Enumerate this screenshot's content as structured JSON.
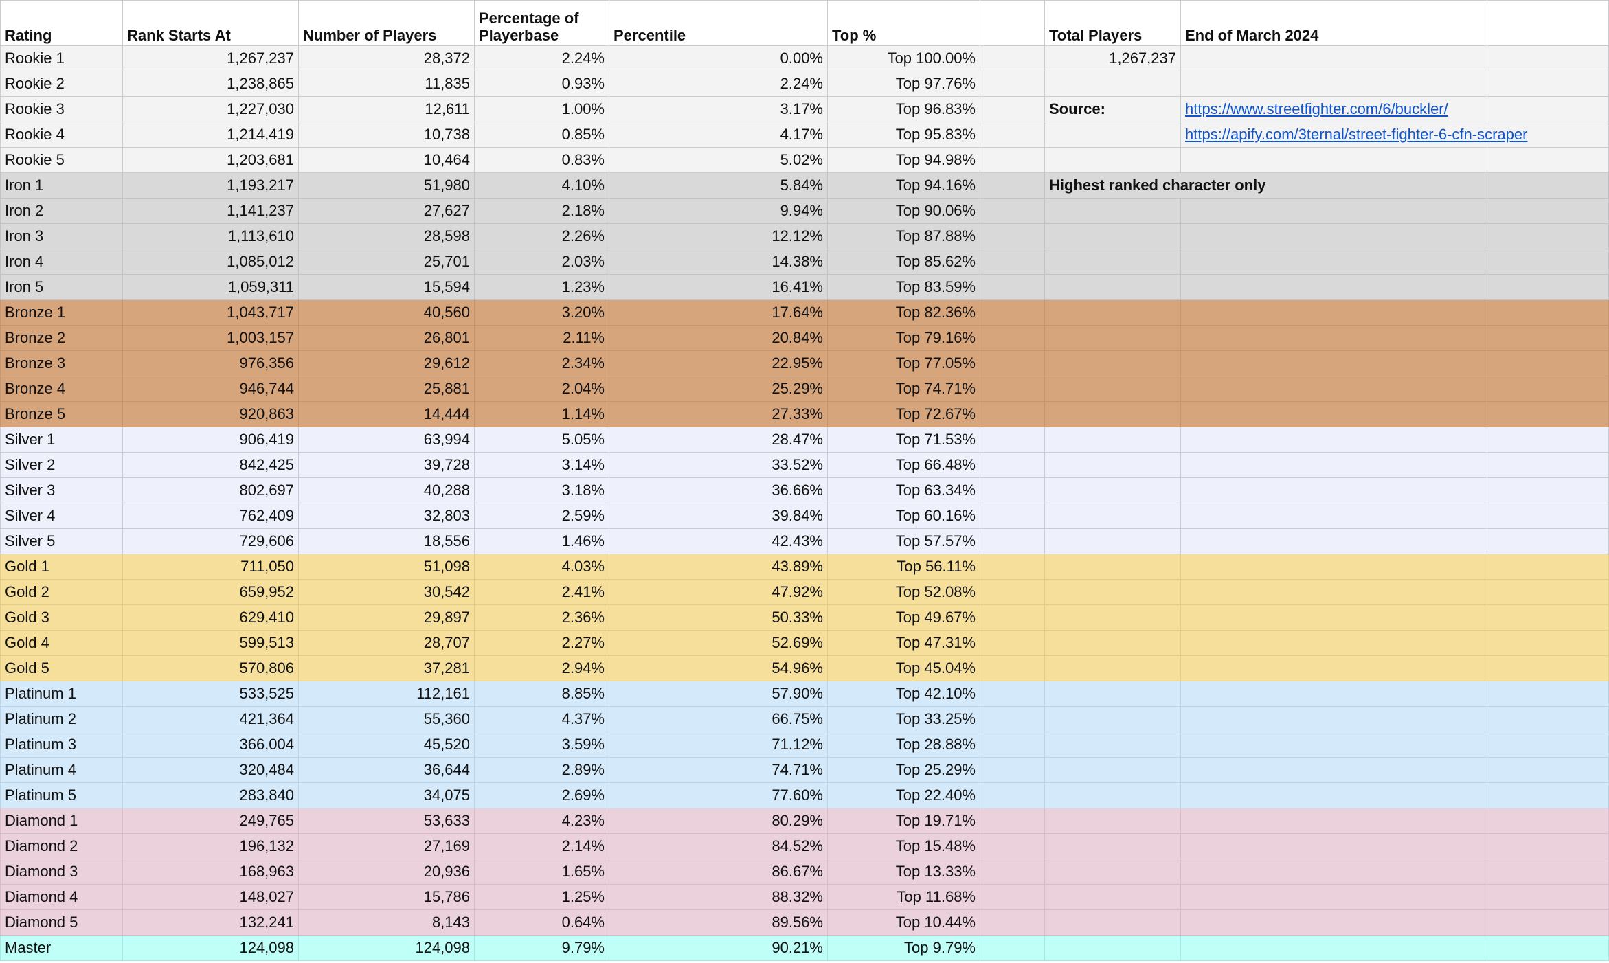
{
  "headers": {
    "rating": "Rating",
    "rank_starts_at": "Rank Starts At",
    "number_of_players": "Number of Players",
    "percentage_of_playerbase": "Percentage of Playerbase",
    "percentile": "Percentile",
    "top_pct": "Top %",
    "total_players": "Total Players",
    "end_date": "End of March 2024"
  },
  "side_panel": {
    "total_players_value": "1,267,237",
    "source_label": "Source:",
    "source_link_1": "https://www.streetfighter.com/6/buckler/",
    "source_link_2": "https://apify.com/3ternal/street-fighter-6-cfn-scraper",
    "note": "Highest ranked character only"
  },
  "tier_colors": {
    "rookie": "#f3f3f3",
    "iron": "#d9d9d9",
    "bronze": "#d6a57c",
    "silver": "#eef1fb",
    "gold": "#f6df9b",
    "platinum": "#d4e9f9",
    "diamond": "#ead1dc",
    "master": "#bffff8"
  },
  "rows": [
    {
      "rating": "Rookie 1",
      "starts": "1,267,237",
      "players": "28,372",
      "pct": "2.24%",
      "percentile": "0.00%",
      "top": "Top 100.00%"
    },
    {
      "rating": "Rookie 2",
      "starts": "1,238,865",
      "players": "11,835",
      "pct": "0.93%",
      "percentile": "2.24%",
      "top": "Top 97.76%"
    },
    {
      "rating": "Rookie 3",
      "starts": "1,227,030",
      "players": "12,611",
      "pct": "1.00%",
      "percentile": "3.17%",
      "top": "Top 96.83%"
    },
    {
      "rating": "Rookie 4",
      "starts": "1,214,419",
      "players": "10,738",
      "pct": "0.85%",
      "percentile": "4.17%",
      "top": "Top 95.83%"
    },
    {
      "rating": "Rookie 5",
      "starts": "1,203,681",
      "players": "10,464",
      "pct": "0.83%",
      "percentile": "5.02%",
      "top": "Top 94.98%"
    },
    {
      "rating": "Iron 1",
      "starts": "1,193,217",
      "players": "51,980",
      "pct": "4.10%",
      "percentile": "5.84%",
      "top": "Top 94.16%"
    },
    {
      "rating": "Iron 2",
      "starts": "1,141,237",
      "players": "27,627",
      "pct": "2.18%",
      "percentile": "9.94%",
      "top": "Top 90.06%"
    },
    {
      "rating": "Iron 3",
      "starts": "1,113,610",
      "players": "28,598",
      "pct": "2.26%",
      "percentile": "12.12%",
      "top": "Top 87.88%"
    },
    {
      "rating": "Iron 4",
      "starts": "1,085,012",
      "players": "25,701",
      "pct": "2.03%",
      "percentile": "14.38%",
      "top": "Top 85.62%"
    },
    {
      "rating": "Iron 5",
      "starts": "1,059,311",
      "players": "15,594",
      "pct": "1.23%",
      "percentile": "16.41%",
      "top": "Top 83.59%"
    },
    {
      "rating": "Bronze 1",
      "starts": "1,043,717",
      "players": "40,560",
      "pct": "3.20%",
      "percentile": "17.64%",
      "top": "Top 82.36%"
    },
    {
      "rating": "Bronze 2",
      "starts": "1,003,157",
      "players": "26,801",
      "pct": "2.11%",
      "percentile": "20.84%",
      "top": "Top 79.16%"
    },
    {
      "rating": "Bronze 3",
      "starts": "976,356",
      "players": "29,612",
      "pct": "2.34%",
      "percentile": "22.95%",
      "top": "Top 77.05%"
    },
    {
      "rating": "Bronze 4",
      "starts": "946,744",
      "players": "25,881",
      "pct": "2.04%",
      "percentile": "25.29%",
      "top": "Top 74.71%"
    },
    {
      "rating": "Bronze 5",
      "starts": "920,863",
      "players": "14,444",
      "pct": "1.14%",
      "percentile": "27.33%",
      "top": "Top 72.67%"
    },
    {
      "rating": "Silver 1",
      "starts": "906,419",
      "players": "63,994",
      "pct": "5.05%",
      "percentile": "28.47%",
      "top": "Top 71.53%"
    },
    {
      "rating": "Silver 2",
      "starts": "842,425",
      "players": "39,728",
      "pct": "3.14%",
      "percentile": "33.52%",
      "top": "Top 66.48%"
    },
    {
      "rating": "Silver 3",
      "starts": "802,697",
      "players": "40,288",
      "pct": "3.18%",
      "percentile": "36.66%",
      "top": "Top 63.34%"
    },
    {
      "rating": "Silver 4",
      "starts": "762,409",
      "players": "32,803",
      "pct": "2.59%",
      "percentile": "39.84%",
      "top": "Top 60.16%"
    },
    {
      "rating": "Silver 5",
      "starts": "729,606",
      "players": "18,556",
      "pct": "1.46%",
      "percentile": "42.43%",
      "top": "Top 57.57%"
    },
    {
      "rating": "Gold 1",
      "starts": "711,050",
      "players": "51,098",
      "pct": "4.03%",
      "percentile": "43.89%",
      "top": "Top 56.11%"
    },
    {
      "rating": "Gold 2",
      "starts": "659,952",
      "players": "30,542",
      "pct": "2.41%",
      "percentile": "47.92%",
      "top": "Top 52.08%"
    },
    {
      "rating": "Gold 3",
      "starts": "629,410",
      "players": "29,897",
      "pct": "2.36%",
      "percentile": "50.33%",
      "top": "Top 49.67%"
    },
    {
      "rating": "Gold 4",
      "starts": "599,513",
      "players": "28,707",
      "pct": "2.27%",
      "percentile": "52.69%",
      "top": "Top 47.31%"
    },
    {
      "rating": "Gold 5",
      "starts": "570,806",
      "players": "37,281",
      "pct": "2.94%",
      "percentile": "54.96%",
      "top": "Top 45.04%"
    },
    {
      "rating": "Platinum 1",
      "starts": "533,525",
      "players": "112,161",
      "pct": "8.85%",
      "percentile": "57.90%",
      "top": "Top 42.10%"
    },
    {
      "rating": "Platinum 2",
      "starts": "421,364",
      "players": "55,360",
      "pct": "4.37%",
      "percentile": "66.75%",
      "top": "Top 33.25%"
    },
    {
      "rating": "Platinum 3",
      "starts": "366,004",
      "players": "45,520",
      "pct": "3.59%",
      "percentile": "71.12%",
      "top": "Top 28.88%"
    },
    {
      "rating": "Platinum 4",
      "starts": "320,484",
      "players": "36,644",
      "pct": "2.89%",
      "percentile": "74.71%",
      "top": "Top 25.29%"
    },
    {
      "rating": "Platinum 5",
      "starts": "283,840",
      "players": "34,075",
      "pct": "2.69%",
      "percentile": "77.60%",
      "top": "Top 22.40%"
    },
    {
      "rating": "Diamond 1",
      "starts": "249,765",
      "players": "53,633",
      "pct": "4.23%",
      "percentile": "80.29%",
      "top": "Top 19.71%"
    },
    {
      "rating": "Diamond 2",
      "starts": "196,132",
      "players": "27,169",
      "pct": "2.14%",
      "percentile": "84.52%",
      "top": "Top 15.48%"
    },
    {
      "rating": "Diamond 3",
      "starts": "168,963",
      "players": "20,936",
      "pct": "1.65%",
      "percentile": "86.67%",
      "top": "Top 13.33%"
    },
    {
      "rating": "Diamond 4",
      "starts": "148,027",
      "players": "15,786",
      "pct": "1.25%",
      "percentile": "88.32%",
      "top": "Top 11.68%"
    },
    {
      "rating": "Diamond 5",
      "starts": "132,241",
      "players": "8,143",
      "pct": "0.64%",
      "percentile": "89.56%",
      "top": "Top 10.44%"
    },
    {
      "rating": "Master",
      "starts": "124,098",
      "players": "124,098",
      "pct": "9.79%",
      "percentile": "90.21%",
      "top": "Top 9.79%"
    }
  ]
}
